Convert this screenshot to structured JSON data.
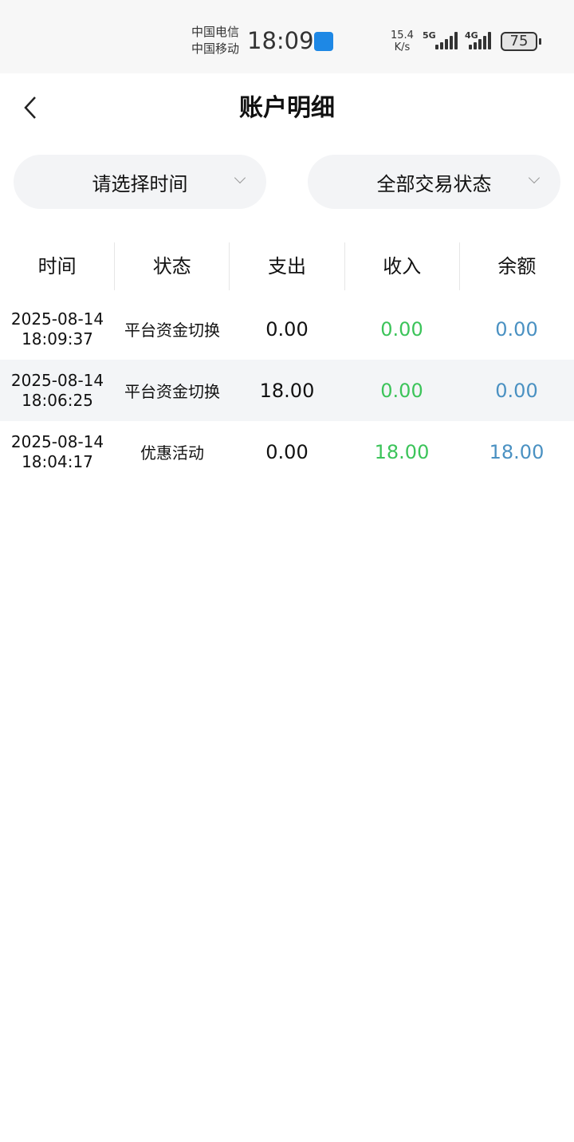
{
  "status_bar": {
    "carrier1": "中国电信",
    "carrier2": "中国移动",
    "time": "18:09",
    "speed_value": "15.4",
    "speed_unit": "K/s",
    "net1": "5G",
    "net2": "4G",
    "battery": "75"
  },
  "header": {
    "title": "账户明细"
  },
  "filters": {
    "time": "请选择时间",
    "status": "全部交易状态"
  },
  "table": {
    "columns": [
      "时间",
      "状态",
      "支出",
      "收入",
      "余额"
    ],
    "rows": [
      {
        "date": "2025-08-14",
        "time": "18:09:37",
        "status": "平台资金切换",
        "expense": "0.00",
        "income": "0.00",
        "balance": "0.00"
      },
      {
        "date": "2025-08-14",
        "time": "18:06:25",
        "status": "平台资金切换",
        "expense": "18.00",
        "income": "0.00",
        "balance": "0.00"
      },
      {
        "date": "2025-08-14",
        "time": "18:04:17",
        "status": "优惠活动",
        "expense": "0.00",
        "income": "18.00",
        "balance": "18.00"
      }
    ]
  },
  "colors": {
    "income": "#3cc45a",
    "balance": "#4a91c2"
  }
}
